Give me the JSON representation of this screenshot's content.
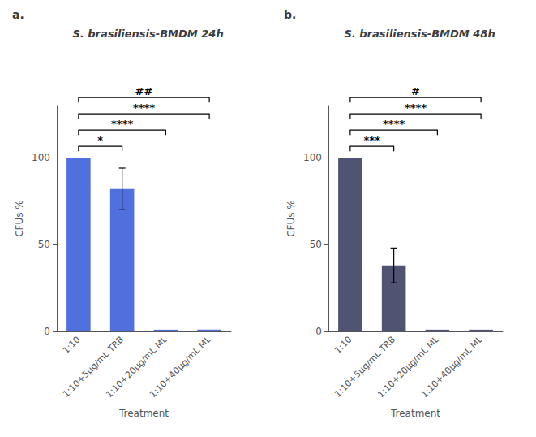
{
  "chart_data": [
    {
      "type": "bar",
      "title": "S. brasiliensis-BMDM 24h",
      "xlabel": "Treatment",
      "ylabel": "CFUs %",
      "categories": [
        "1:10",
        "1:10+5μg/mL TRB",
        "1:10+20μg/mL ML",
        "1:10+40μg/mL ML"
      ],
      "values": [
        100,
        82,
        1,
        1
      ],
      "errors": [
        0,
        12,
        0,
        0
      ],
      "ylim": [
        0,
        130
      ],
      "yticks": [
        0,
        50,
        100
      ],
      "grid": false,
      "annotations": [
        {
          "text": "a."
        },
        {
          "text": "*",
          "from": "1:10",
          "to": "1:10+5μg/mL TRB"
        },
        {
          "text": "****",
          "from": "1:10",
          "to": "1:10+20μg/mL ML"
        },
        {
          "text": "****",
          "from": "1:10",
          "to": "1:10+40μg/mL ML"
        },
        {
          "text": "##",
          "from": "1:10",
          "to": "1:10+40μg/mL ML"
        }
      ]
    },
    {
      "type": "bar",
      "title": "S. brasiliensis-BMDM 48h",
      "xlabel": "Treatment",
      "ylabel": "CFUs %",
      "categories": [
        "1:10",
        "1:10+5μg/mL TRB",
        "1:10+20μg/mL ML",
        "1:10+40μg/mL ML"
      ],
      "values": [
        100,
        38,
        1,
        1
      ],
      "errors": [
        0,
        10,
        0,
        0
      ],
      "ylim": [
        0,
        130
      ],
      "yticks": [
        0,
        50,
        100
      ],
      "grid": false,
      "annotations": [
        {
          "text": "b."
        },
        {
          "text": "***",
          "from": "1:10",
          "to": "1:10+5μg/mL TRB"
        },
        {
          "text": "****",
          "from": "1:10",
          "to": "1:10+20μg/mL ML"
        },
        {
          "text": "****",
          "from": "1:10",
          "to": "1:10+40μg/mL ML"
        },
        {
          "text": "#",
          "from": "1:10",
          "to": "1:10+40μg/mL ML"
        }
      ]
    }
  ]
}
